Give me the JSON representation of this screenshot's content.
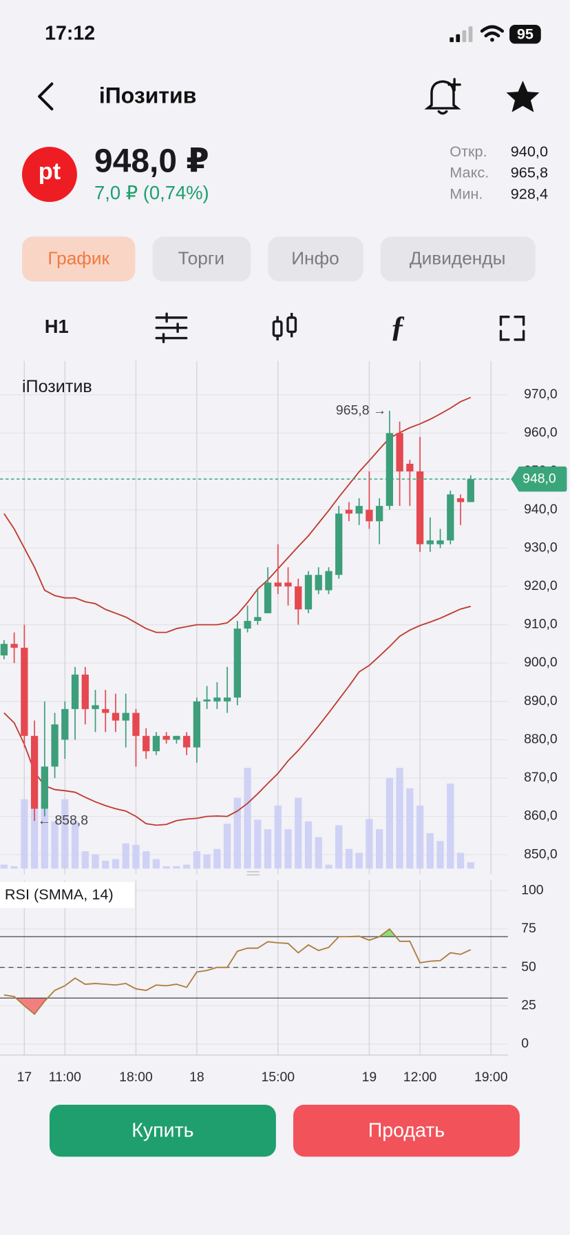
{
  "status_bar": {
    "time": "17:12",
    "battery": "95"
  },
  "header": {
    "title": "iПозитив"
  },
  "quote": {
    "logo": "pt",
    "price": "948,0 ₽",
    "change": "7,0 ₽ (0,74%)",
    "stats": [
      {
        "label": "Откр.",
        "value": "940,0"
      },
      {
        "label": "Макс.",
        "value": "965,8"
      },
      {
        "label": "Мин.",
        "value": "928,4"
      }
    ]
  },
  "tabs": [
    "График",
    "Торги",
    "Инфо",
    "Дивиденды"
  ],
  "toolbar": {
    "interval": "H1"
  },
  "chart_data": {
    "type": "candlestick",
    "title": "iПозитив",
    "colors": {
      "up": "#3d9e7a",
      "down": "#e5484f",
      "bands": "#c0392b",
      "volume": "#c9cdf5",
      "rsi": "#b07a3a",
      "rsi_high": "#8fe07a",
      "rsi_low": "#f08080",
      "last": "#3aa57a"
    },
    "xlim": [
      -0.4,
      49.2
    ],
    "xticks": [
      {
        "value": 2,
        "label": "17"
      },
      {
        "value": 6,
        "label": "11:00"
      },
      {
        "value": 13,
        "label": "18:00"
      },
      {
        "value": 19,
        "label": "18"
      },
      {
        "value": 27,
        "label": "15:00"
      },
      {
        "value": 36,
        "label": "19"
      },
      {
        "value": 41,
        "label": "12:00"
      },
      {
        "value": 48,
        "label": "19:00"
      }
    ],
    "ylim": [
      850,
      970
    ],
    "yticks": [
      {
        "value": 970,
        "label": "970,0"
      },
      {
        "value": 960,
        "label": "960,0"
      },
      {
        "value": 950,
        "label": "950,0"
      },
      {
        "value": 940,
        "label": "940,0"
      },
      {
        "value": 930,
        "label": "930,0"
      },
      {
        "value": 920,
        "label": "920,0"
      },
      {
        "value": 910,
        "label": "910,0"
      },
      {
        "value": 900,
        "label": "900,0"
      },
      {
        "value": 890,
        "label": "890,0"
      },
      {
        "value": 880,
        "label": "880,0"
      },
      {
        "value": 870,
        "label": "870,0"
      },
      {
        "value": 860,
        "label": "860,0"
      },
      {
        "value": 850,
        "label": "850,0"
      }
    ],
    "open": [
      902,
      905,
      904,
      881,
      862,
      873,
      880,
      888,
      897,
      888,
      888,
      887,
      885,
      887,
      881,
      877,
      881,
      880,
      881,
      878,
      890,
      890,
      890,
      891,
      909,
      911,
      913,
      921,
      921,
      920,
      914,
      919,
      919,
      923,
      940,
      939,
      940,
      937,
      941,
      960,
      952,
      950,
      931,
      931,
      932,
      943,
      942
    ],
    "high": [
      906,
      908,
      910,
      885,
      890,
      887,
      890,
      899,
      899,
      893,
      893,
      892,
      892,
      888,
      883,
      882,
      882,
      881,
      882,
      891,
      894,
      895,
      899,
      911,
      915,
      919,
      925,
      931,
      925,
      922,
      924,
      925,
      925,
      941,
      942,
      943,
      950,
      943,
      965.8,
      963,
      953,
      959,
      938,
      935,
      945,
      944,
      949
    ],
    "low": [
      901,
      900,
      878,
      858.8,
      860,
      870,
      875,
      880,
      884,
      882,
      882,
      882,
      878,
      873,
      875,
      876,
      879,
      879,
      876,
      874,
      888,
      888,
      887,
      889,
      908,
      910,
      913,
      918,
      915,
      910,
      913,
      918,
      918,
      922,
      937,
      936,
      935,
      931,
      940,
      941,
      941,
      929,
      929,
      930,
      931,
      936,
      942
    ],
    "close": [
      905,
      904,
      881,
      862,
      873,
      884,
      888,
      897,
      888,
      889,
      887,
      885,
      887,
      881,
      877,
      881,
      880,
      881,
      878,
      890,
      890.5,
      891,
      891,
      909,
      911,
      912,
      921,
      920,
      920,
      914,
      923,
      923,
      924,
      939,
      939,
      941,
      937,
      941,
      960,
      950,
      950,
      931,
      932,
      932,
      944,
      942,
      948
    ],
    "bands": [
      {
        "name": "upper",
        "values": [
          939,
          935,
          930,
          925,
          919,
          917.6,
          917,
          917,
          916,
          915.5,
          914,
          913,
          912,
          910.5,
          909,
          908,
          908,
          909,
          909.5,
          910,
          910,
          910,
          910.5,
          912.7,
          915.8,
          919.3,
          921.7,
          924.6,
          927.5,
          930.4,
          933.2,
          936.5,
          939.8,
          943.3,
          946.6,
          949.9,
          952.8,
          955.8,
          958.7,
          960.1,
          961.4,
          962.4,
          963.6,
          965,
          966.5,
          968.2,
          969.3
        ]
      },
      {
        "name": "lower",
        "values": [
          887,
          884.4,
          878.8,
          871.6,
          868,
          867,
          866.7,
          866.3,
          865,
          863.8,
          862.8,
          862,
          861.4,
          860,
          858.1,
          857.7,
          857.9,
          858.9,
          859.3,
          859.5,
          860,
          860.1,
          860,
          861.4,
          863.4,
          865.9,
          868.6,
          871.2,
          874.5,
          877.2,
          880.3,
          883.6,
          887,
          890.5,
          894,
          897.7,
          899.4,
          901.8,
          904.3,
          907,
          908.6,
          909.8,
          910.7,
          911.7,
          912.9,
          914.1,
          914.8
        ]
      }
    ],
    "volume": [
      5,
      3,
      88,
      80,
      85,
      60,
      88,
      60,
      22,
      18,
      10,
      12,
      32,
      30,
      22,
      12,
      3,
      3,
      5,
      22,
      18,
      25,
      57,
      90,
      128,
      62,
      50,
      80,
      50,
      90,
      60,
      40,
      5,
      55,
      25,
      20,
      63,
      50,
      115,
      128,
      102,
      80,
      45,
      35,
      108,
      20,
      8
    ],
    "last": {
      "value": 948,
      "label": "948,0"
    },
    "annotations": [
      {
        "value": 965.8,
        "label": "965,8 →"
      },
      {
        "value": 858.8,
        "label": "← 858,8"
      }
    ],
    "rsi": {
      "title": "RSI (SMMA, 14)",
      "values": [
        32,
        31,
        25,
        19.5,
        28,
        35,
        38,
        43,
        39,
        39.5,
        39,
        38.5,
        39.5,
        36,
        35,
        38.5,
        38,
        39,
        37,
        47,
        48,
        50,
        50,
        60.5,
        62.5,
        62.5,
        66.7,
        66,
        65.6,
        59.5,
        64.6,
        61,
        63,
        70,
        70,
        70.3,
        67.7,
        70,
        75,
        67,
        67,
        53,
        54,
        54.4,
        59.5,
        58.5,
        61.5
      ],
      "ylim": [
        0,
        100
      ],
      "yticks": [
        100,
        75,
        50,
        25,
        0
      ],
      "levels": [
        30,
        70
      ],
      "mid": 50
    }
  },
  "actions": {
    "buy": "Купить",
    "sell": "Продать"
  }
}
